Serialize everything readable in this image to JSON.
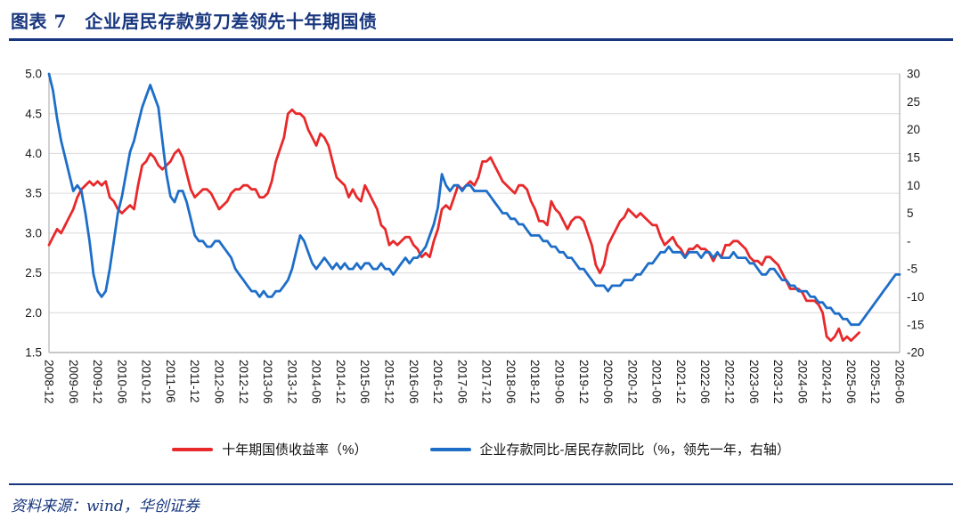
{
  "header": {
    "title": "图表 7　企业居民存款剪刀差领先十年期国债"
  },
  "footer": {
    "source": "资料来源：wind，华创证券"
  },
  "colors": {
    "navy": "#17367e",
    "grid": "#d9d9d9",
    "axis": "#a6a6a6",
    "tick_text": "#1a1a1a",
    "red_line": "#e8292b",
    "blue_line": "#1e6ec8"
  },
  "chart_data": {
    "type": "line",
    "title": "图表 7　企业居民存款剪刀差领先十年期国债",
    "grid": true,
    "legend_position": "bottom",
    "x_tick_labels": [
      "2008-12",
      "2009-06",
      "2009-12",
      "2010-06",
      "2010-12",
      "2011-06",
      "2011-12",
      "2012-06",
      "2012-12",
      "2013-06",
      "2013-12",
      "2014-06",
      "2014-12",
      "2015-06",
      "2015-12",
      "2016-06",
      "2016-12",
      "2017-06",
      "2017-12",
      "2018-06",
      "2018-12",
      "2019-06",
      "2019-12",
      "2020-06",
      "2020-12",
      "2021-06",
      "2021-12",
      "2022-06",
      "2022-12",
      "2023-06",
      "2023-12",
      "2024-06",
      "2024-12",
      "2025-06",
      "2025-12",
      "2026-06"
    ],
    "x_months_per_tick": 6,
    "x_total_months": 210,
    "left_axis": {
      "min": 1.5,
      "max": 5.0,
      "ticks": [
        5.0,
        4.5,
        4.0,
        3.5,
        3.0,
        2.5,
        2.0,
        1.5
      ]
    },
    "right_axis": {
      "min": -20,
      "max": 30,
      "ticks": [
        30,
        25,
        20,
        15,
        10,
        5,
        0,
        -5,
        -10,
        -15,
        -20
      ],
      "zero_label": "-"
    },
    "series": [
      {
        "name": "十年期国债收益率（%）",
        "axis": "left",
        "color": "#e8292b",
        "start": "2008-12",
        "monthly_values": [
          2.85,
          2.95,
          3.05,
          3.0,
          3.1,
          3.2,
          3.3,
          3.45,
          3.55,
          3.6,
          3.65,
          3.6,
          3.65,
          3.6,
          3.65,
          3.45,
          3.4,
          3.3,
          3.25,
          3.3,
          3.35,
          3.3,
          3.6,
          3.85,
          3.9,
          4.0,
          3.95,
          3.85,
          3.8,
          3.85,
          3.9,
          4.0,
          4.05,
          3.95,
          3.75,
          3.55,
          3.45,
          3.5,
          3.55,
          3.55,
          3.5,
          3.4,
          3.3,
          3.35,
          3.4,
          3.5,
          3.55,
          3.55,
          3.6,
          3.6,
          3.55,
          3.55,
          3.45,
          3.45,
          3.5,
          3.65,
          3.9,
          4.05,
          4.2,
          4.5,
          4.55,
          4.5,
          4.5,
          4.45,
          4.3,
          4.2,
          4.1,
          4.25,
          4.2,
          4.1,
          3.9,
          3.7,
          3.65,
          3.6,
          3.45,
          3.55,
          3.45,
          3.4,
          3.6,
          3.5,
          3.4,
          3.3,
          3.1,
          3.05,
          2.85,
          2.9,
          2.85,
          2.9,
          2.95,
          2.95,
          2.85,
          2.8,
          2.7,
          2.75,
          2.7,
          2.9,
          3.05,
          3.3,
          3.35,
          3.3,
          3.45,
          3.6,
          3.55,
          3.6,
          3.65,
          3.6,
          3.7,
          3.9,
          3.9,
          3.95,
          3.85,
          3.75,
          3.65,
          3.6,
          3.55,
          3.5,
          3.6,
          3.6,
          3.55,
          3.4,
          3.3,
          3.15,
          3.15,
          3.1,
          3.4,
          3.3,
          3.25,
          3.15,
          3.05,
          3.15,
          3.2,
          3.2,
          3.15,
          3.0,
          2.85,
          2.6,
          2.5,
          2.6,
          2.85,
          2.95,
          3.05,
          3.15,
          3.2,
          3.3,
          3.25,
          3.2,
          3.25,
          3.2,
          3.15,
          3.1,
          3.1,
          2.95,
          2.85,
          2.9,
          2.95,
          2.85,
          2.8,
          2.7,
          2.8,
          2.8,
          2.85,
          2.8,
          2.8,
          2.75,
          2.65,
          2.75,
          2.7,
          2.85,
          2.85,
          2.9,
          2.9,
          2.85,
          2.8,
          2.7,
          2.65,
          2.65,
          2.6,
          2.7,
          2.7,
          2.65,
          2.6,
          2.5,
          2.4,
          2.3,
          2.3,
          2.3,
          2.25,
          2.15,
          2.15,
          2.15,
          2.1,
          2.0,
          1.7,
          1.65,
          1.7,
          1.8,
          1.65,
          1.7,
          1.65,
          1.7,
          1.75
        ]
      },
      {
        "name": "企业存款同比-居民存款同比（%，领先一年，右轴）",
        "axis": "right",
        "color": "#1e6ec8",
        "start": "2008-12",
        "monthly_values": [
          30,
          27,
          22,
          18,
          15,
          12,
          9,
          10,
          9,
          5,
          0,
          -6,
          -9,
          -10,
          -9,
          -5,
          0,
          5,
          8,
          12,
          16,
          18,
          21,
          24,
          26,
          28,
          26,
          24,
          18,
          12,
          8,
          7,
          9,
          9,
          7,
          4,
          1,
          0,
          0,
          -1,
          -1,
          0,
          0,
          -1,
          -2,
          -3,
          -5,
          -6,
          -7,
          -8,
          -9,
          -9,
          -10,
          -9,
          -10,
          -10,
          -9,
          -9,
          -8,
          -7,
          -5,
          -2,
          1,
          0,
          -2,
          -4,
          -5,
          -4,
          -3,
          -4,
          -5,
          -4,
          -5,
          -4,
          -5,
          -5,
          -4,
          -5,
          -4,
          -4,
          -5,
          -5,
          -4,
          -5,
          -5,
          -6,
          -5,
          -4,
          -3,
          -4,
          -3,
          -3,
          -2,
          -1,
          1,
          3,
          6,
          12,
          10,
          9,
          10,
          10,
          9,
          10,
          10,
          9,
          9,
          9,
          9,
          8,
          7,
          6,
          5,
          5,
          4,
          4,
          3,
          3,
          2,
          1,
          1,
          1,
          0,
          0,
          -1,
          -1,
          -2,
          -2,
          -3,
          -3,
          -4,
          -5,
          -5,
          -6,
          -7,
          -8,
          -8,
          -8,
          -9,
          -8,
          -8,
          -8,
          -7,
          -7,
          -7,
          -6,
          -6,
          -5,
          -4,
          -4,
          -3,
          -2,
          -2,
          -1,
          -2,
          -2,
          -2,
          -3,
          -2,
          -2,
          -2,
          -3,
          -2,
          -2,
          -3,
          -2,
          -3,
          -3,
          -3,
          -2,
          -3,
          -3,
          -3,
          -4,
          -4,
          -5,
          -6,
          -6,
          -5,
          -5,
          -6,
          -7,
          -7,
          -8,
          -8,
          -9,
          -9,
          -9,
          -10,
          -10,
          -11,
          -11,
          -12,
          -12,
          -13,
          -13,
          -14,
          -14,
          -15,
          -15,
          -15,
          -14,
          -13,
          -12,
          -11,
          -10,
          -9,
          -8,
          -7,
          -6,
          -6
        ]
      }
    ]
  }
}
